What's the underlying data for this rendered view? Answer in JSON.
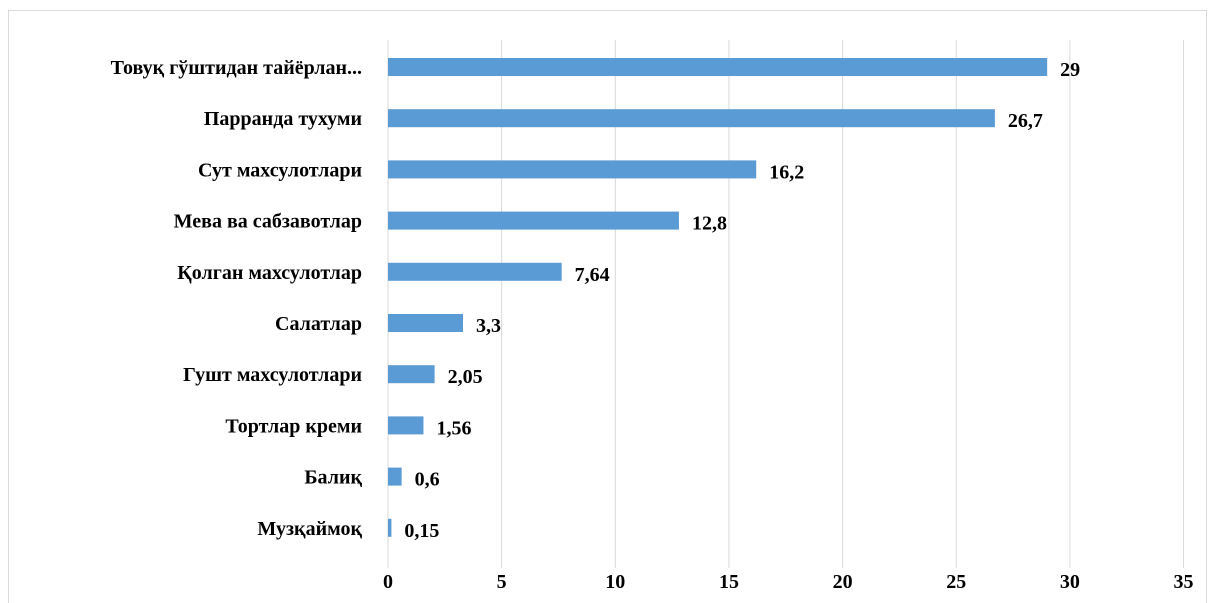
{
  "chart_data": {
    "type": "bar",
    "orientation": "horizontal",
    "categories": [
      "Товуқ гўштидан тайёрлан...",
      "Парранда тухуми",
      "Сут махсулотлари",
      "Мева ва сабзавотлар",
      "Қолган махсулотлар",
      "Салатлар",
      "Гушт махсулотлари",
      "Тортлар креми",
      "Балиқ",
      "Музқаймоқ"
    ],
    "values": [
      29,
      26.7,
      16.2,
      12.8,
      7.64,
      3.3,
      2.05,
      1.56,
      0.6,
      0.15
    ],
    "data_labels": [
      "29",
      "26,7",
      "16,2",
      "12,8",
      "7,64",
      "3,3",
      "2,05",
      "1,56",
      "0,6",
      "0,15"
    ],
    "x_ticks": [
      0,
      5,
      10,
      15,
      20,
      25,
      30,
      35
    ],
    "xlim": [
      0,
      35
    ],
    "grid": "vertical",
    "bar_color": "#5b9bd5",
    "title": "",
    "xlabel": "",
    "ylabel": ""
  }
}
